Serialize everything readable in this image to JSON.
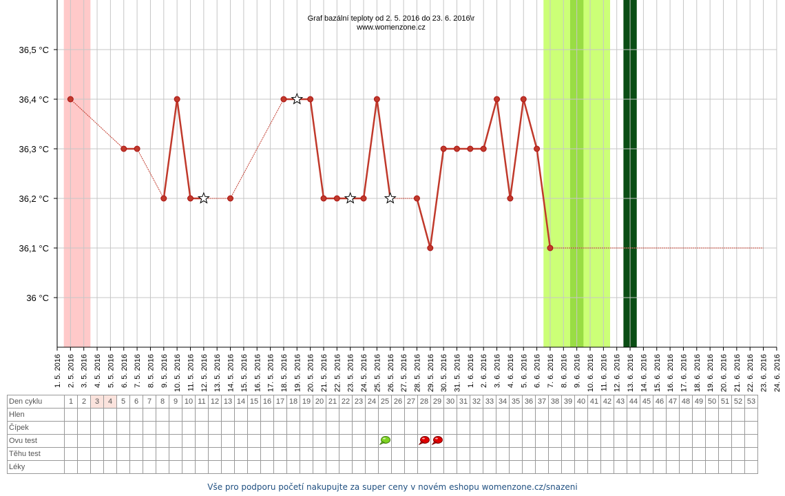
{
  "chart_data": {
    "type": "line",
    "title": "Graf bazální teploty od 2. 5. 2016 do 23. 6. 2016\\r",
    "subtitle": "www.womenzone.cz",
    "x_labels": [
      "1. 5. 2016",
      "2. 5. 2016",
      "3. 5. 2016",
      "4. 5. 2016",
      "5. 5. 2016",
      "6. 5. 2016",
      "7. 5. 2016",
      "8. 5. 2016",
      "9. 5. 2016",
      "10. 5. 2016",
      "11. 5. 2016",
      "12. 5. 2016",
      "13. 5. 2016",
      "14. 5. 2016",
      "15. 5. 2016",
      "16. 5. 2016",
      "17. 5. 2016",
      "18. 5. 2016",
      "19. 5. 2016",
      "20. 5. 2016",
      "21. 5. 2016",
      "22. 5. 2016",
      "23. 5. 2016",
      "24. 5. 2016",
      "25. 5. 2016",
      "26. 5. 2016",
      "27. 5. 2016",
      "28. 5. 2016",
      "29. 5. 2016",
      "30. 5. 2016",
      "31. 5. 2016",
      "1. 6. 2016",
      "2. 6. 2016",
      "3. 6. 2016",
      "4. 6. 2016",
      "5. 6. 2016",
      "6. 6. 2016",
      "7. 6. 2016",
      "8. 6. 2016",
      "9. 6. 2016",
      "10. 6. 2016",
      "11. 6. 2016",
      "12. 6. 2016",
      "13. 6. 2016",
      "14. 6. 2016",
      "15. 6. 2016",
      "16. 6. 2016",
      "17. 6. 2016",
      "18. 6. 2016",
      "19. 6. 2016",
      "20. 6. 2016",
      "21. 6. 2016",
      "22. 6. 2016",
      "23. 6. 2016",
      "24. 6. 2016"
    ],
    "y_ticks": [
      {
        "value": 36.0,
        "label": "36 °C"
      },
      {
        "value": 36.1,
        "label": "36,1 °C"
      },
      {
        "value": 36.2,
        "label": "36,2 °C"
      },
      {
        "value": 36.3,
        "label": "36,3 °C"
      },
      {
        "value": 36.4,
        "label": "36,4 °C"
      },
      {
        "value": 36.5,
        "label": "36,5 °C"
      }
    ],
    "ylim": [
      35.9,
      36.6
    ],
    "grid": true,
    "points": [
      {
        "x": "2. 5. 2016",
        "y": 36.4,
        "marker": "dot"
      },
      {
        "x": "6. 5. 2016",
        "y": 36.3,
        "marker": "dot"
      },
      {
        "x": "7. 5. 2016",
        "y": 36.3,
        "marker": "dot"
      },
      {
        "x": "9. 5. 2016",
        "y": 36.2,
        "marker": "dot"
      },
      {
        "x": "10. 5. 2016",
        "y": 36.4,
        "marker": "dot"
      },
      {
        "x": "11. 5. 2016",
        "y": 36.2,
        "marker": "dot"
      },
      {
        "x": "12. 5. 2016",
        "y": 36.2,
        "marker": "star"
      },
      {
        "x": "14. 5. 2016",
        "y": 36.2,
        "marker": "dot"
      },
      {
        "x": "18. 5. 2016",
        "y": 36.4,
        "marker": "dot"
      },
      {
        "x": "19. 5. 2016",
        "y": 36.4,
        "marker": "star"
      },
      {
        "x": "20. 5. 2016",
        "y": 36.4,
        "marker": "dot"
      },
      {
        "x": "21. 5. 2016",
        "y": 36.2,
        "marker": "dot"
      },
      {
        "x": "22. 5. 2016",
        "y": 36.2,
        "marker": "dot"
      },
      {
        "x": "23. 5. 2016",
        "y": 36.2,
        "marker": "star"
      },
      {
        "x": "24. 5. 2016",
        "y": 36.2,
        "marker": "dot"
      },
      {
        "x": "25. 5. 2016",
        "y": 36.4,
        "marker": "dot"
      },
      {
        "x": "26. 5. 2016",
        "y": 36.2,
        "marker": "star"
      },
      {
        "x": "28. 5. 2016",
        "y": 36.2,
        "marker": "dot"
      },
      {
        "x": "29. 5. 2016",
        "y": 36.1,
        "marker": "dot"
      },
      {
        "x": "30. 5. 2016",
        "y": 36.3,
        "marker": "dot"
      },
      {
        "x": "31. 5. 2016",
        "y": 36.3,
        "marker": "dot"
      },
      {
        "x": "1. 6. 2016",
        "y": 36.3,
        "marker": "dot"
      },
      {
        "x": "2. 6. 2016",
        "y": 36.3,
        "marker": "dot"
      },
      {
        "x": "3. 6. 2016",
        "y": 36.4,
        "marker": "dot"
      },
      {
        "x": "4. 6. 2016",
        "y": 36.2,
        "marker": "dot"
      },
      {
        "x": "5. 6. 2016",
        "y": 36.4,
        "marker": "dot"
      },
      {
        "x": "6. 6. 2016",
        "y": 36.3,
        "marker": "dot"
      },
      {
        "x": "7. 6. 2016",
        "y": 36.1,
        "marker": "dot"
      },
      {
        "x": "23. 6. 2016",
        "y": 36.1,
        "marker": "none"
      }
    ],
    "bands": [
      {
        "from": "2. 5. 2016",
        "to": "3. 5. 2016",
        "color": "#ffc9c9"
      },
      {
        "from": "7. 6. 2016",
        "to": "11. 6. 2016",
        "color": "#ccff77"
      },
      {
        "from": "9. 6. 2016",
        "to": "9. 6. 2016",
        "color": "#99dd44"
      },
      {
        "from": "13. 6. 2016",
        "to": "13. 6. 2016",
        "color": "#0a4d14"
      }
    ],
    "line_color": "#c0392b"
  },
  "table": {
    "row_labels": [
      "Den cyklu",
      "Hlen",
      "Čípek",
      "Ovu test",
      "Těhu test",
      "Léky"
    ],
    "days": [
      "1",
      "2",
      "3",
      "4",
      "5",
      "6",
      "7",
      "8",
      "9",
      "10",
      "11",
      "12",
      "13",
      "14",
      "15",
      "16",
      "17",
      "18",
      "19",
      "20",
      "21",
      "22",
      "23",
      "24",
      "25",
      "26",
      "27",
      "28",
      "29",
      "30",
      "31",
      "32",
      "33",
      "34",
      "35",
      "36",
      "37",
      "38",
      "39",
      "40",
      "41",
      "42",
      "43",
      "44",
      "45",
      "46",
      "47",
      "48",
      "49",
      "50",
      "51",
      "52",
      "53"
    ],
    "highlighted_days": [
      "3",
      "4"
    ],
    "ovu_tests": [
      {
        "day": "25",
        "result": "green"
      },
      {
        "day": "28",
        "result": "red"
      },
      {
        "day": "29",
        "result": "red"
      }
    ]
  },
  "footer": {
    "text": "Vše pro podporu početí nakupujte za super ceny v novém eshopu womenzone.cz/snazeni"
  }
}
